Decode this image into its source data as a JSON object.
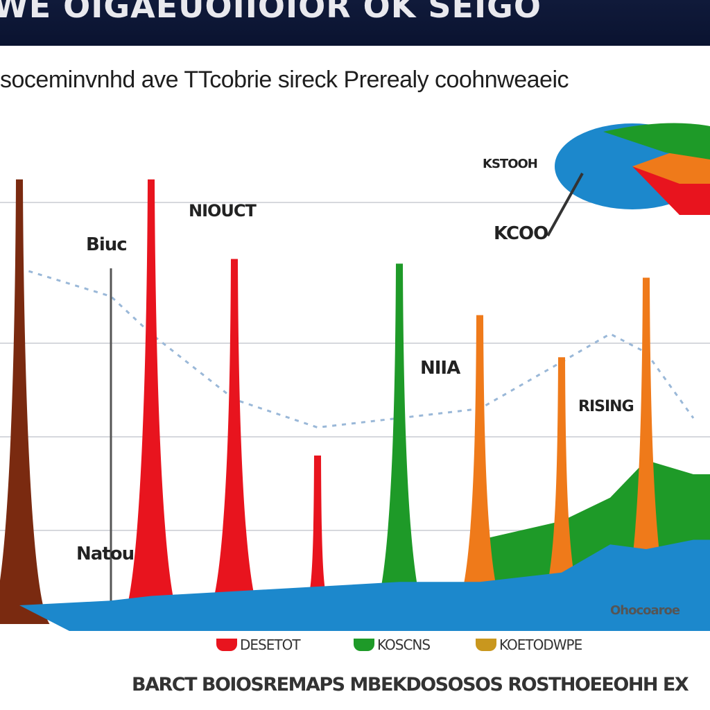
{
  "header": {
    "banner_text": "WE OIGAEUOIIOIOR OK SEIGO",
    "subtitle": "soceminvnhd ave TTcobrie sireck Prerealy coohnweaeic"
  },
  "colors": {
    "red": "#e8141e",
    "brown": "#7a2a10",
    "green": "#1e9a28",
    "orange": "#ef7a1a",
    "blue": "#1c88cc",
    "grid": "#c9ccd2",
    "dashed": "#9ab8d8"
  },
  "labels": {
    "l1": "Biuc",
    "l2": "NIOUCT",
    "l3": "KSTOOH",
    "l4": "KCOO",
    "l5": "NIIA",
    "l6": "RISING",
    "l7": "Natou",
    "l8": "Ohocoaroe"
  },
  "legend": [
    {
      "label": "DESETOT",
      "color": "#e8141e"
    },
    {
      "label": "KOSCNS",
      "color": "#1e9a28"
    },
    {
      "label": "KOETODWPE",
      "color": "#c9971e"
    }
  ],
  "footer": "BARCT BOIOSREMAPS MBEKDOSOSOS ROSTHOEEOHH EX",
  "chart_data": {
    "type": "area",
    "title": "",
    "x": [
      1,
      2,
      3,
      4,
      5,
      6,
      7,
      8,
      9,
      10,
      11
    ],
    "series": [
      {
        "color": "#7a2a10",
        "peak_x": 1,
        "values": [
          95,
          0,
          0,
          0,
          0,
          0,
          0,
          0,
          0,
          0,
          0
        ]
      },
      {
        "color": "#e8141e",
        "peak_x": 3,
        "values": [
          0,
          0,
          95,
          0,
          0,
          0,
          0,
          0,
          0,
          0,
          0
        ]
      },
      {
        "color": "#e8141e",
        "peak_x": 4,
        "values": [
          0,
          0,
          0,
          78,
          0,
          0,
          0,
          0,
          0,
          0,
          0
        ]
      },
      {
        "color": "#e8141e",
        "peak_x": 5,
        "values": [
          0,
          0,
          0,
          0,
          36,
          0,
          0,
          0,
          0,
          0,
          0
        ]
      },
      {
        "color": "#1e9a28",
        "peak_x": 6,
        "values": [
          0,
          0,
          0,
          0,
          0,
          77,
          0,
          0,
          0,
          0,
          0
        ]
      },
      {
        "color": "#ef7a1a",
        "peak_x": 7,
        "values": [
          0,
          0,
          0,
          0,
          0,
          0,
          66,
          0,
          0,
          0,
          0
        ]
      },
      {
        "color": "#ef7a1a",
        "peak_x": 8,
        "values": [
          0,
          0,
          0,
          0,
          0,
          0,
          0,
          57,
          0,
          0,
          0
        ]
      },
      {
        "color": "#ef7a1a",
        "peak_x": 10,
        "values": [
          0,
          0,
          0,
          0,
          0,
          0,
          0,
          0,
          0,
          74,
          0
        ]
      }
    ],
    "base_area": {
      "color": "#1c88cc",
      "values": [
        4,
        5,
        6,
        7,
        8,
        9,
        9,
        11,
        17,
        16,
        18
      ]
    },
    "green_area": {
      "color": "#1e9a28",
      "values": [
        0,
        0,
        0,
        0,
        0,
        0,
        18,
        22,
        27,
        35,
        32
      ]
    },
    "dashed_line": [
      76,
      70,
      62,
      48,
      42,
      44,
      46,
      56,
      62,
      58,
      44
    ],
    "ylim": [
      0,
      100
    ],
    "grid": true
  }
}
